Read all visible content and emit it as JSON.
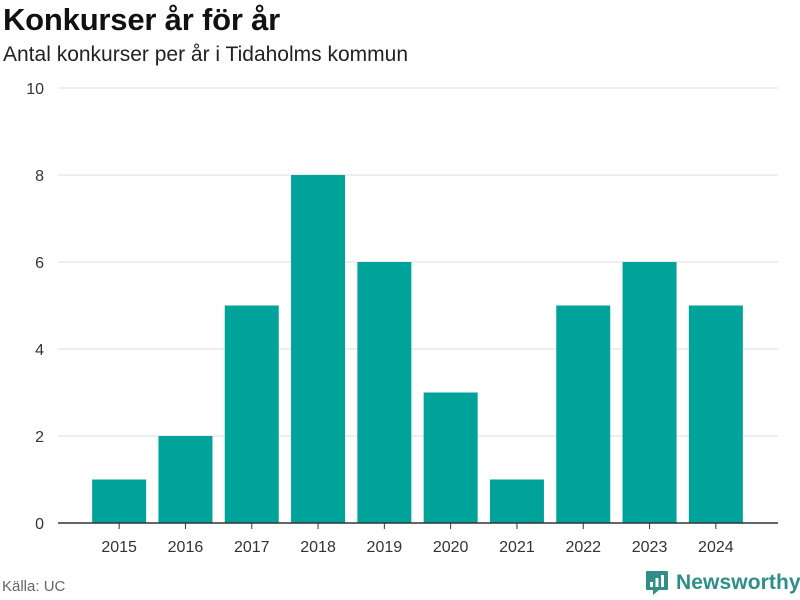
{
  "header": {
    "title": "Konkurser år för år",
    "subtitle": "Antal konkurser per år i Tidaholms kommun"
  },
  "footer": {
    "source": "Källa: UC",
    "brand": "Newsworthy",
    "brand_icon": "newsworthy-logo-icon"
  },
  "colors": {
    "bar": "#00a39a",
    "grid": "#dddddd",
    "axis": "#333333",
    "brand": "#2f8f86"
  },
  "chart_data": {
    "type": "bar",
    "title": "Konkurser år för år",
    "subtitle": "Antal konkurser per år i Tidaholms kommun",
    "categories": [
      "2015",
      "2016",
      "2017",
      "2018",
      "2019",
      "2020",
      "2021",
      "2022",
      "2023",
      "2024"
    ],
    "values": [
      1,
      2,
      5,
      8,
      6,
      3,
      1,
      5,
      6,
      5
    ],
    "yticks": [
      0,
      2,
      4,
      6,
      8,
      10
    ],
    "ylim": [
      0,
      10
    ],
    "xlabel": "",
    "ylabel": "",
    "grid": true,
    "legend": "none"
  }
}
